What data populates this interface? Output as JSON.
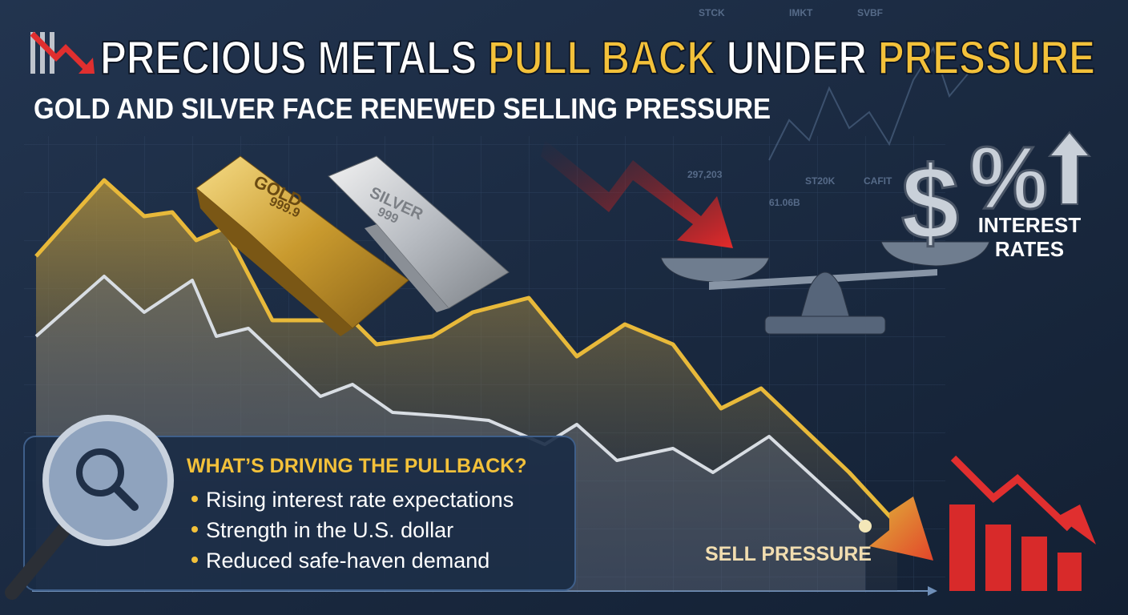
{
  "header": {
    "title": {
      "part1": "PRECIOUS METALS",
      "part2": "PULL BACK",
      "part3": "UNDER",
      "part4": "PRESSURE"
    },
    "subtitle": "GOLD AND SILVER FACE RENEWED SELLING PRESSURE"
  },
  "bars": {
    "gold": {
      "name": "GOLD",
      "purity": "999.9"
    },
    "silver": {
      "name": "SILVER",
      "purity": "999"
    }
  },
  "rates": {
    "dollar": "$",
    "percent": "%",
    "label_line1": "INTEREST",
    "label_line2": "RATES"
  },
  "ticker": [
    "STCK",
    "IMKT",
    "SVBF",
    "297,203",
    "61.06B",
    "ST20K",
    "CAFIT"
  ],
  "drivers": {
    "heading": "WHAT’S DRIVING THE PULLBACK?",
    "items": [
      "Rising interest rate expectations",
      "Strength in the U.S. dollar",
      "Reduced safe-haven demand"
    ]
  },
  "callout": "SELL PRESSURE"
}
